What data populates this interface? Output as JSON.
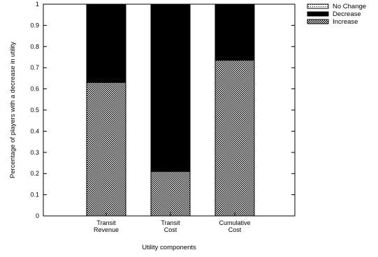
{
  "chart_data": {
    "type": "bar",
    "stacked": true,
    "categories": [
      [
        "Transit",
        "Revenue"
      ],
      [
        "Transit",
        "Cost"
      ],
      [
        "Cumulative",
        "Cost"
      ]
    ],
    "series": [
      {
        "name": "Increase",
        "values": [
          0.63,
          0.21,
          0.735
        ],
        "pattern": "checker",
        "color": "#000000"
      },
      {
        "name": "Decrease",
        "values": [
          0.37,
          0.79,
          0.265
        ],
        "pattern": "solid",
        "color": "#000000"
      },
      {
        "name": "No Change",
        "values": [
          0.0,
          0.0,
          0.0
        ],
        "pattern": "dots",
        "color": "#000000"
      }
    ],
    "legend_order": [
      "No Change",
      "Decrease",
      "Increase"
    ],
    "legend_position": "outside-top-right",
    "xlabel": "Utility components",
    "ylabel": "Percentage of players with a decrease in utility",
    "ylim": [
      0,
      1
    ],
    "yticks": [
      0,
      0.1,
      0.2,
      0.3,
      0.4,
      0.5,
      0.6,
      0.7,
      0.8,
      0.9,
      1
    ],
    "grid": false
  }
}
